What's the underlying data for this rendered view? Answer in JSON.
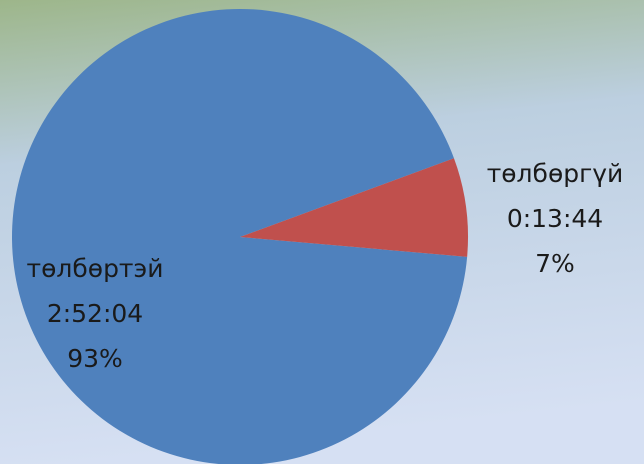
{
  "chart_data": {
    "type": "pie",
    "categories": [
      "төлбөртэй",
      "төлбөргүй"
    ],
    "durations": [
      "2:52:04",
      "0:13:44"
    ],
    "values": [
      93,
      7
    ],
    "value_labels": [
      "93%",
      "7%"
    ],
    "colors": [
      "#4f81bd",
      "#c0504d"
    ]
  }
}
